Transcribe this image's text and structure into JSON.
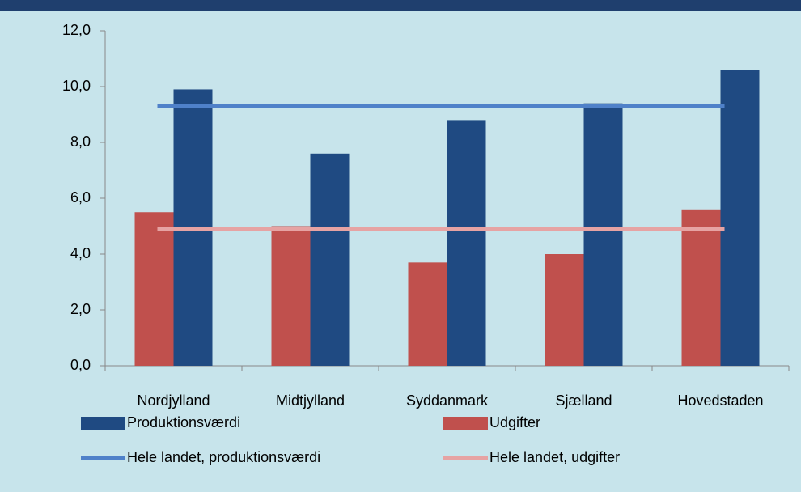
{
  "chart_data": {
    "type": "bar",
    "categories": [
      "Nordjylland",
      "Midtjylland",
      "Syddanmark",
      "Sjælland",
      "Hovedstaden"
    ],
    "series": [
      {
        "name": "Produktionsværdi",
        "type": "bar",
        "color": "#1f4a82",
        "values": [
          9.9,
          7.6,
          8.8,
          9.4,
          10.6
        ]
      },
      {
        "name": "Udgifter",
        "type": "bar",
        "color": "#c0504d",
        "values": [
          5.5,
          5.0,
          3.7,
          4.0,
          5.6
        ]
      },
      {
        "name": "Hele landet, produktionsværdi",
        "type": "line",
        "color": "#4f81c9",
        "values": [
          9.3,
          9.3,
          9.3,
          9.3,
          9.3
        ]
      },
      {
        "name": "Hele landet, udgifter",
        "type": "line",
        "color": "#e6a3a3",
        "values": [
          4.9,
          4.9,
          4.9,
          4.9,
          4.9
        ]
      }
    ],
    "bar_order": [
      1,
      0
    ],
    "ylim": [
      0,
      12
    ],
    "yticks": [
      {
        "value": 0,
        "label": "0,0"
      },
      {
        "value": 2,
        "label": "2,0"
      },
      {
        "value": 4,
        "label": "4,0"
      },
      {
        "value": 6,
        "label": "6,0"
      },
      {
        "value": 8,
        "label": "8,0"
      },
      {
        "value": 10,
        "label": "10,0"
      },
      {
        "value": 12,
        "label": "12,0"
      }
    ],
    "grid": false
  }
}
